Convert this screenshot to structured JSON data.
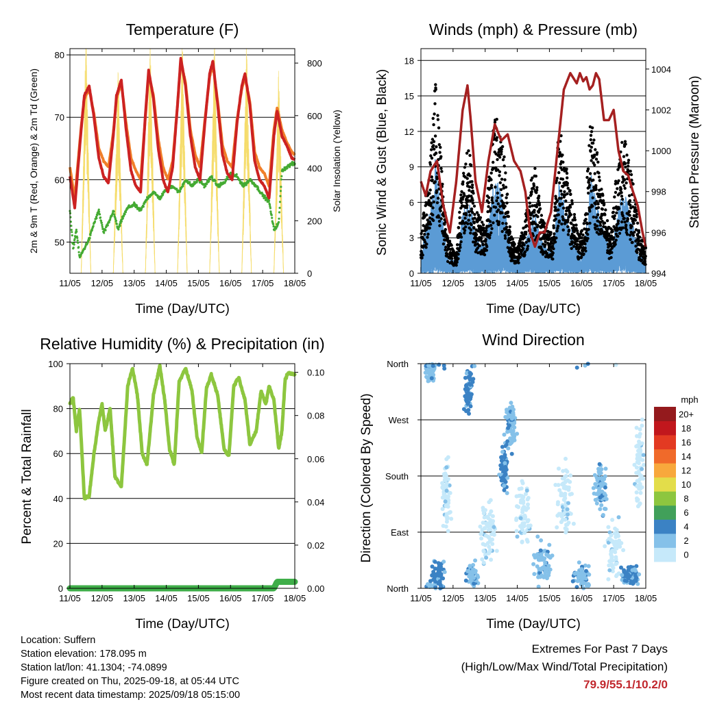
{
  "colors": {
    "temp_2m": "#cc2222",
    "temp_9m": "#f07f2a",
    "dewpoint": "#44aa33",
    "solar": "#f5dc6a",
    "gust": "#000000",
    "wind": "#5b9bd5",
    "pressure": "#a52020",
    "rh": "#8dc63f",
    "rain": "#3fae49",
    "extremes": "#c1272d"
  },
  "x_ticks": [
    "11/05",
    "12/05",
    "13/05",
    "14/05",
    "15/05",
    "16/05",
    "17/05",
    "18/05"
  ],
  "chart_data": [
    {
      "type": "line",
      "title": "Temperature (F)",
      "xlabel": "Time (Day/UTC)",
      "ylabel": "2m & 9m T (Red, Orange) & 2m Td (Green)",
      "y2label": "Solar Insolation (Yellow)",
      "x_range_days": [
        0,
        7
      ],
      "ylim": [
        45,
        81
      ],
      "y_ticks": [
        50,
        60,
        70,
        80
      ],
      "y2lim": [
        0,
        855
      ],
      "y2_ticks": [
        0,
        200,
        400,
        600,
        800
      ],
      "grid": true,
      "series": [
        {
          "key": "t2m",
          "x_days": [
            0,
            0.15,
            0.35,
            0.45,
            0.6,
            0.75,
            0.9,
            1.05,
            1.2,
            1.35,
            1.45,
            1.6,
            1.75,
            1.9,
            2.05,
            2.2,
            2.35,
            2.45,
            2.6,
            2.75,
            2.9,
            3.05,
            3.2,
            3.35,
            3.45,
            3.6,
            3.75,
            3.9,
            4.05,
            4.2,
            4.35,
            4.45,
            4.6,
            4.75,
            4.9,
            5.05,
            5.2,
            5.35,
            5.45,
            5.6,
            5.75,
            5.9,
            6.05,
            6.2,
            6.35,
            6.45,
            6.6,
            6.75,
            6.9,
            7
          ],
          "values": [
            60.5,
            55.5,
            68,
            73.5,
            75,
            70,
            63.5,
            60.5,
            59.5,
            67,
            73.5,
            76,
            68,
            61.5,
            59,
            58,
            70.5,
            77.5,
            73,
            65,
            60,
            58,
            62,
            72,
            79.5,
            75,
            67,
            62,
            60,
            69,
            77,
            79,
            72,
            64,
            61,
            60,
            69,
            75,
            77,
            72,
            63,
            60,
            59,
            57,
            67,
            71,
            67,
            65.5,
            63.5,
            63.2
          ]
        },
        {
          "key": "t9m",
          "x_days": [
            0,
            0.15,
            0.35,
            0.45,
            0.6,
            0.75,
            0.9,
            1.05,
            1.2,
            1.35,
            1.45,
            1.6,
            1.75,
            1.9,
            2.05,
            2.2,
            2.35,
            2.45,
            2.6,
            2.75,
            2.9,
            3.05,
            3.2,
            3.35,
            3.45,
            3.6,
            3.75,
            3.9,
            4.05,
            4.2,
            4.35,
            4.45,
            4.6,
            4.75,
            4.9,
            5.05,
            5.2,
            5.35,
            5.45,
            5.6,
            5.75,
            5.9,
            6.05,
            6.2,
            6.35,
            6.45,
            6.6,
            6.75,
            6.9,
            7
          ],
          "values": [
            62,
            57,
            68.5,
            73,
            74.5,
            70.5,
            65,
            63,
            62,
            67.5,
            73,
            75.5,
            69,
            63.5,
            61.5,
            60,
            70,
            77,
            73.5,
            66.5,
            62,
            60,
            63,
            72,
            79,
            75.5,
            68,
            64,
            62,
            69.5,
            76.5,
            78.5,
            72.5,
            65.5,
            63,
            62,
            69.5,
            74.5,
            76.5,
            72.5,
            64.5,
            62,
            61,
            59,
            68,
            71.5,
            68,
            66,
            64.5,
            64
          ]
        },
        {
          "key": "td2m",
          "x_days": [
            0,
            0.1,
            0.2,
            0.3,
            0.45,
            0.6,
            0.75,
            0.9,
            1.05,
            1.2,
            1.35,
            1.5,
            1.65,
            1.8,
            2,
            2.2,
            2.4,
            2.6,
            2.8,
            3,
            3.2,
            3.4,
            3.6,
            3.8,
            4,
            4.2,
            4.4,
            4.6,
            4.8,
            5,
            5.2,
            5.4,
            5.6,
            5.8,
            6,
            6.2,
            6.35,
            6.5,
            6.6,
            6.75,
            6.9,
            7
          ],
          "values": [
            55,
            49,
            52,
            47.5,
            49,
            50.5,
            53,
            55,
            51.5,
            53,
            55,
            52,
            54,
            55.5,
            56,
            55,
            57,
            58,
            57,
            58.5,
            59,
            58,
            60,
            59,
            60,
            59,
            60.5,
            59,
            59.5,
            61,
            60.5,
            59,
            60,
            59,
            57.5,
            56.5,
            52,
            53,
            61.5,
            62,
            62.5,
            62.5
          ]
        },
        {
          "key": "solar",
          "x_days": [
            0,
            0.35,
            0.5,
            0.65,
            0.85,
            1,
            1.35,
            1.5,
            1.65,
            1.85,
            2,
            2.35,
            2.5,
            2.65,
            2.85,
            3,
            3.35,
            3.5,
            3.65,
            3.85,
            4,
            4.35,
            4.5,
            4.65,
            4.85,
            5,
            5.35,
            5.5,
            5.65,
            5.85,
            6,
            6.35,
            6.5,
            6.65,
            6.85,
            7
          ],
          "values": [
            0,
            0,
            825,
            0,
            0,
            0,
            0,
            705,
            0,
            0,
            0,
            0,
            840,
            0,
            0,
            0,
            0,
            820,
            0,
            0,
            0,
            0,
            810,
            0,
            0,
            0,
            0,
            795,
            0,
            0,
            0,
            0,
            710,
            0,
            0,
            0
          ]
        }
      ]
    },
    {
      "type": "scatter",
      "title": "Winds (mph) & Pressure (mb)",
      "xlabel": "Time (Day/UTC)",
      "ylabel": "Sonic Wind & Gust (Blue, Black)",
      "y2label": "Station Pressure (Maroon)",
      "x_range_days": [
        0,
        7
      ],
      "ylim": [
        0,
        19
      ],
      "y_ticks": [
        0,
        3,
        6,
        9,
        12,
        15,
        18
      ],
      "y2lim": [
        994,
        1005
      ],
      "y2_ticks": [
        994,
        996,
        998,
        1000,
        1002,
        1004
      ],
      "grid": true,
      "gust_envelope": {
        "x_days": [
          0,
          0.3,
          0.45,
          0.6,
          0.8,
          1.1,
          1.3,
          1.5,
          1.7,
          2,
          2.3,
          2.6,
          2.8,
          3,
          3.3,
          3.5,
          3.8,
          4.1,
          4.3,
          4.6,
          4.9,
          5.1,
          5.3,
          5.6,
          5.9,
          6.1,
          6.3,
          6.6,
          6.8,
          7
        ],
        "values": [
          3,
          9,
          15,
          10,
          3,
          1.5,
          8,
          10,
          5,
          4,
          13,
          9,
          3,
          2,
          5,
          9,
          4,
          3,
          12,
          7,
          3,
          4,
          13,
          7,
          3,
          8,
          11,
          7,
          3,
          2
        ]
      },
      "pressure": {
        "x_days": [
          0,
          0.15,
          0.3,
          0.5,
          0.7,
          0.9,
          1.1,
          1.3,
          1.45,
          1.55,
          1.7,
          1.9,
          2.1,
          2.3,
          2.5,
          2.7,
          2.9,
          3.1,
          3.25,
          3.4,
          3.55,
          3.7,
          3.85,
          4.05,
          4.25,
          4.45,
          4.65,
          4.85,
          4.95,
          5.05,
          5.15,
          5.25,
          5.35,
          5.45,
          5.55,
          5.7,
          5.85,
          6,
          6.15,
          6.3,
          6.45,
          6.6,
          6.75,
          6.9,
          7
        ],
        "values": [
          998.5,
          997.8,
          999,
          999.5,
          997.3,
          996,
          998.5,
          1002,
          1003.2,
          1001.5,
          998.5,
          997,
          999.5,
          1001.3,
          1000.5,
          1000.8,
          999.5,
          999,
          998,
          996,
          995.3,
          996,
          996,
          997,
          1000,
          1003,
          1003.8,
          1003.3,
          1003.8,
          1003.4,
          1003.6,
          1003,
          1003.2,
          1003.8,
          1003.5,
          1001.5,
          1001.5,
          1002,
          1000,
          999,
          998.8,
          998,
          997.3,
          996,
          995.3
        ]
      }
    },
    {
      "type": "line",
      "title": "Relative Humidity (%) & Precipitation (in)",
      "xlabel": "Time (Day/UTC)",
      "ylabel": "Percent & Total Rainfall",
      "x_range_days": [
        0,
        7
      ],
      "ylim": [
        0,
        100
      ],
      "y_ticks": [
        0,
        20,
        40,
        60,
        80,
        100
      ],
      "y2lim": [
        0,
        0.104
      ],
      "y2_ticks": [
        "0.00",
        "0.02",
        "0.04",
        "0.06",
        "0.08",
        "0.10"
      ],
      "grid": true,
      "series": [
        {
          "key": "rh",
          "x_days": [
            0,
            0.1,
            0.2,
            0.3,
            0.45,
            0.6,
            0.75,
            0.9,
            1,
            1.1,
            1.25,
            1.4,
            1.6,
            1.8,
            1.95,
            2.1,
            2.25,
            2.4,
            2.6,
            2.8,
            2.95,
            3.1,
            3.25,
            3.4,
            3.6,
            3.8,
            3.95,
            4.1,
            4.25,
            4.4,
            4.6,
            4.8,
            4.95,
            5.1,
            5.25,
            5.45,
            5.6,
            5.8,
            5.95,
            6.1,
            6.2,
            6.35,
            6.5,
            6.6,
            6.7,
            6.8,
            7
          ],
          "values": [
            82,
            85,
            70,
            80,
            40,
            41,
            60,
            75,
            82,
            70,
            80,
            50,
            45,
            90,
            98,
            86,
            60,
            55,
            86,
            99,
            84,
            62,
            55,
            92,
            98,
            88,
            68,
            60,
            89,
            95,
            86,
            62,
            59,
            90,
            94,
            84,
            64,
            70,
            88,
            82,
            90,
            84,
            62,
            70,
            93,
            96,
            95
          ]
        },
        {
          "key": "rain",
          "x_days": [
            0,
            6.35,
            6.45,
            7
          ],
          "values": [
            0,
            0,
            0.003,
            0.003
          ]
        }
      ]
    },
    {
      "type": "scatter",
      "title": "Wind Direction",
      "xlabel": "Time (Day/UTC)",
      "ylabel": "Direction (Colored By Speed)",
      "x_range_days": [
        0,
        7
      ],
      "y_ticks": [
        "North",
        "East",
        "South",
        "West",
        "North"
      ],
      "ylim_deg": [
        0,
        360
      ],
      "colorbar_unit": "mph",
      "colorbar_labels": [
        "0",
        "2",
        "4",
        "6",
        "8",
        "10",
        "12",
        "14",
        "16",
        "18",
        "20+"
      ],
      "colorbar_colors": [
        "#c6e9fa",
        "#85c1e9",
        "#3b82c4",
        "#41a05a",
        "#8dc63f",
        "#e3dd4a",
        "#f8a83c",
        "#f06a2a",
        "#e33a22",
        "#c1171d",
        "#941a1d"
      ],
      "clusters": [
        {
          "x_day": 0.3,
          "deg": 350,
          "spread_x": 0.2,
          "spread_deg": 20,
          "speed": 3
        },
        {
          "x_day": 0.55,
          "deg": 20,
          "spread_x": 0.25,
          "spread_deg": 25,
          "speed": 4
        },
        {
          "x_day": 0.8,
          "deg": 150,
          "spread_x": 0.15,
          "spread_deg": 60,
          "speed": 1
        },
        {
          "x_day": 1.5,
          "deg": 320,
          "spread_x": 0.15,
          "spread_deg": 40,
          "speed": 4
        },
        {
          "x_day": 1.6,
          "deg": 20,
          "spread_x": 0.2,
          "spread_deg": 20,
          "speed": 3
        },
        {
          "x_day": 2.1,
          "deg": 80,
          "spread_x": 0.3,
          "spread_deg": 60,
          "speed": 1
        },
        {
          "x_day": 2.6,
          "deg": 190,
          "spread_x": 0.15,
          "spread_deg": 40,
          "speed": 4
        },
        {
          "x_day": 2.8,
          "deg": 260,
          "spread_x": 0.2,
          "spread_deg": 40,
          "speed": 3
        },
        {
          "x_day": 3.2,
          "deg": 120,
          "spread_x": 0.3,
          "spread_deg": 60,
          "speed": 1
        },
        {
          "x_day": 3.8,
          "deg": 40,
          "spread_x": 0.3,
          "spread_deg": 40,
          "speed": 3
        },
        {
          "x_day": 4.5,
          "deg": 140,
          "spread_x": 0.3,
          "spread_deg": 70,
          "speed": 1
        },
        {
          "x_day": 5.0,
          "deg": 20,
          "spread_x": 0.3,
          "spread_deg": 25,
          "speed": 3
        },
        {
          "x_day": 5.6,
          "deg": 160,
          "spread_x": 0.2,
          "spread_deg": 40,
          "speed": 3
        },
        {
          "x_day": 6.0,
          "deg": 60,
          "spread_x": 0.3,
          "spread_deg": 50,
          "speed": 1
        },
        {
          "x_day": 6.5,
          "deg": 20,
          "spread_x": 0.3,
          "spread_deg": 20,
          "speed": 4
        },
        {
          "x_day": 6.8,
          "deg": 200,
          "spread_x": 0.15,
          "spread_deg": 80,
          "speed": 1
        }
      ]
    }
  ],
  "info": {
    "location": "Location: Suffern",
    "elevation": "Station elevation: 178.095 m",
    "latlon": "Station lat/lon: 41.1304; -74.0899",
    "created": "Figure created on Thu, 2025-09-18, at 05:44 UTC",
    "recent": "Most recent data timestamp: 2025/09/18 05:15:00"
  },
  "extremes": {
    "title": "Extremes For Past 7 Days",
    "subtitle": "(High/Low/Max Wind/Total Precipitation)",
    "values": "79.9/55.1/10.2/0"
  }
}
